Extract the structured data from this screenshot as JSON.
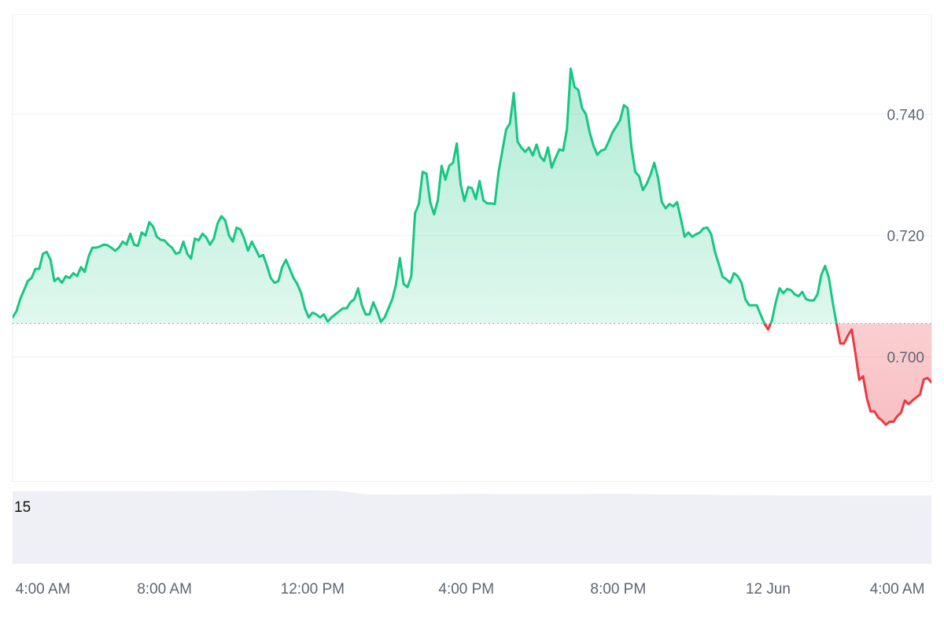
{
  "chart_data": {
    "type": "area",
    "baseline": 0.7055,
    "ylim": [
      0.6795,
      0.7565
    ],
    "xlim": [
      0,
      24.2
    ],
    "y_ticks": [
      {
        "label": "0.740",
        "value": 0.74
      },
      {
        "label": "0.720",
        "value": 0.72
      },
      {
        "label": "0.700",
        "value": 0.7
      }
    ],
    "x_ticks": [
      {
        "label": "4:00 AM",
        "value": 0.8
      },
      {
        "label": "8:00 AM",
        "value": 4.0
      },
      {
        "label": "12:00 PM",
        "value": 7.9
      },
      {
        "label": "4:00 PM",
        "value": 11.95
      },
      {
        "label": "8:00 PM",
        "value": 15.95
      },
      {
        "label": "12 Jun",
        "value": 19.9
      },
      {
        "label": "4:00 AM",
        "value": 23.3
      }
    ],
    "colors": {
      "up_line": "#16c784",
      "down_line": "#ea3943",
      "up_fill": "#16c784",
      "down_fill": "#ea3943",
      "grid": "#eef0f3",
      "baseline_dots": "#9aa0a6",
      "volume": "#eef0f5"
    },
    "volume_label": "15",
    "series_x_start": 0.0,
    "series_x_step": 0.1,
    "series": [
      0.7065,
      0.7075,
      0.7095,
      0.711,
      0.7125,
      0.713,
      0.7145,
      0.7145,
      0.717,
      0.7173,
      0.716,
      0.7125,
      0.713,
      0.7122,
      0.7133,
      0.713,
      0.7138,
      0.7133,
      0.7148,
      0.714,
      0.7165,
      0.718,
      0.718,
      0.7182,
      0.7185,
      0.7184,
      0.718,
      0.7175,
      0.718,
      0.719,
      0.7185,
      0.7203,
      0.7185,
      0.7183,
      0.7205,
      0.72,
      0.7222,
      0.7215,
      0.7198,
      0.7193,
      0.7192,
      0.7185,
      0.718,
      0.717,
      0.7172,
      0.719,
      0.717,
      0.7162,
      0.7195,
      0.7192,
      0.7203,
      0.7197,
      0.7185,
      0.7195,
      0.722,
      0.7232,
      0.7225,
      0.72,
      0.719,
      0.7213,
      0.721,
      0.7195,
      0.7175,
      0.719,
      0.7178,
      0.7165,
      0.7168,
      0.715,
      0.713,
      0.7122,
      0.7125,
      0.7148,
      0.716,
      0.7145,
      0.713,
      0.712,
      0.7105,
      0.708,
      0.7065,
      0.7073,
      0.707,
      0.7065,
      0.707,
      0.7058,
      0.7065,
      0.707,
      0.7075,
      0.708,
      0.708,
      0.709,
      0.7095,
      0.7113,
      0.7085,
      0.707,
      0.707,
      0.709,
      0.7075,
      0.7058,
      0.7065,
      0.708,
      0.7095,
      0.712,
      0.7163,
      0.712,
      0.7115,
      0.7133,
      0.7237,
      0.7252,
      0.7305,
      0.7302,
      0.7255,
      0.7235,
      0.7258,
      0.7315,
      0.7292,
      0.7315,
      0.732,
      0.7352,
      0.7285,
      0.7257,
      0.728,
      0.7278,
      0.726,
      0.729,
      0.7258,
      0.7253,
      0.7253,
      0.7252,
      0.7305,
      0.734,
      0.7375,
      0.7385,
      0.7435,
      0.7355,
      0.7345,
      0.7338,
      0.7345,
      0.7332,
      0.735,
      0.733,
      0.7323,
      0.7345,
      0.7312,
      0.7328,
      0.7342,
      0.734,
      0.7375,
      0.7475,
      0.7445,
      0.744,
      0.741,
      0.74,
      0.737,
      0.7348,
      0.7333,
      0.734,
      0.7342,
      0.7355,
      0.737,
      0.738,
      0.739,
      0.7415,
      0.741,
      0.7345,
      0.7305,
      0.7298,
      0.7275,
      0.7285,
      0.73,
      0.732,
      0.7295,
      0.7255,
      0.7245,
      0.7252,
      0.7248,
      0.7255,
      0.7228,
      0.7198,
      0.7205,
      0.7198,
      0.7202,
      0.7205,
      0.7212,
      0.7213,
      0.7202,
      0.7173,
      0.7153,
      0.7132,
      0.7128,
      0.7122,
      0.7138,
      0.7133,
      0.7122,
      0.7095,
      0.7085,
      0.7085,
      0.7085,
      0.707,
      0.7055,
      0.7045,
      0.706,
      0.709,
      0.7113,
      0.7105,
      0.7112,
      0.711,
      0.7103,
      0.71,
      0.7107,
      0.7095,
      0.7093,
      0.7093,
      0.7103,
      0.7135,
      0.715,
      0.713,
      0.709,
      0.7055,
      0.7022,
      0.7022,
      0.7035,
      0.7045,
      0.7005,
      0.6962,
      0.6968,
      0.6932,
      0.691,
      0.691,
      0.69,
      0.6895,
      0.6888,
      0.6893,
      0.6893,
      0.6902,
      0.6908,
      0.6928,
      0.6922,
      0.6928,
      0.6933,
      0.6938,
      0.6963,
      0.6965,
      0.6958,
      0.697,
      0.6955,
      0.6958,
      0.6955,
      0.6945,
      0.6955,
      0.6968,
      0.6985,
      0.6955,
      0.694,
      0.6955,
      0.7008,
      0.702,
      0.701,
      0.7028,
      0.7008,
      0.6985,
      0.6965,
      0.693,
      0.695,
      0.6945,
      0.6975,
      0.6995,
      0.7008,
      0.701,
      0.6985,
      0.6962,
      0.697,
      0.697,
      0.6978,
      0.6975,
      0.6965,
      0.698,
      0.698,
      0.6985
    ],
    "volume_profile": [
      [
        0,
        0.877
      ],
      [
        2,
        0.88
      ],
      [
        4,
        0.879
      ],
      [
        6,
        0.882
      ],
      [
        7.1,
        0.892
      ],
      [
        8.6,
        0.885
      ],
      [
        9.3,
        0.84
      ],
      [
        10,
        0.836
      ],
      [
        12,
        0.845
      ],
      [
        14,
        0.842
      ],
      [
        16,
        0.847
      ],
      [
        17.5,
        0.838
      ],
      [
        19,
        0.832
      ],
      [
        20.5,
        0.828
      ],
      [
        22,
        0.826
      ],
      [
        24.2,
        0.826
      ]
    ]
  }
}
